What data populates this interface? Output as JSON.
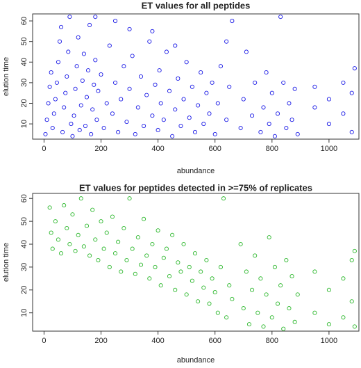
{
  "chart_data": [
    {
      "type": "scatter",
      "title": "ET values for all peptides",
      "x_label": "abundance",
      "y_label": "elution time",
      "color": "#1a1ae6",
      "x": [
        5,
        10,
        15,
        20,
        25,
        30,
        35,
        40,
        45,
        50,
        55,
        60,
        65,
        70,
        75,
        80,
        85,
        90,
        95,
        100,
        105,
        110,
        115,
        120,
        125,
        130,
        135,
        140,
        145,
        150,
        155,
        160,
        165,
        170,
        175,
        180,
        185,
        190,
        200,
        210,
        220,
        230,
        240,
        250,
        260,
        270,
        280,
        290,
        300,
        310,
        320,
        330,
        340,
        350,
        360,
        370,
        380,
        390,
        400,
        405,
        410,
        420,
        430,
        440,
        450,
        460,
        470,
        480,
        490,
        500,
        510,
        520,
        530,
        540,
        550,
        560,
        570,
        580,
        590,
        600,
        610,
        620,
        640,
        650,
        660,
        690,
        700,
        710,
        730,
        740,
        760,
        770,
        780,
        790,
        800,
        810,
        820,
        830,
        840,
        850,
        860,
        870,
        880,
        890,
        950,
        950,
        1000,
        1000,
        1050,
        1050,
        1080,
        1080,
        1090,
        460,
        380,
        300,
        250,
        180,
        640
      ],
      "values": [
        5,
        12,
        20,
        28,
        35,
        8,
        15,
        22,
        30,
        40,
        50,
        57,
        6,
        18,
        25,
        33,
        45,
        62,
        10,
        4,
        14,
        27,
        38,
        52,
        7,
        19,
        31,
        44,
        9,
        23,
        36,
        58,
        5,
        17,
        29,
        41,
        12,
        26,
        34,
        8,
        20,
        48,
        15,
        30,
        6,
        22,
        38,
        11,
        27,
        43,
        5,
        18,
        33,
        9,
        24,
        50,
        14,
        29,
        7,
        36,
        20,
        12,
        45,
        26,
        4,
        17,
        32,
        9,
        22,
        40,
        13,
        28,
        6,
        19,
        35,
        10,
        25,
        15,
        30,
        5,
        20,
        38,
        12,
        28,
        60,
        8,
        22,
        45,
        14,
        30,
        6,
        18,
        35,
        10,
        25,
        4,
        15,
        62,
        30,
        8,
        20,
        12,
        27,
        5,
        18,
        28,
        10,
        22,
        15,
        30,
        6,
        25,
        37,
        48,
        55,
        56,
        60,
        62,
        50
      ],
      "xlim": [
        -40,
        1105
      ],
      "ylim": [
        2.6,
        63.4
      ],
      "xticks": [
        0,
        200,
        400,
        600,
        800,
        1000
      ],
      "yticks": [
        10,
        20,
        30,
        40,
        50,
        60
      ]
    },
    {
      "type": "scatter",
      "title": "ET values for peptides detected in >=75% of replicates",
      "x_label": "abundance",
      "y_label": "elution time",
      "color": "#2db82d",
      "x": [
        20,
        25,
        30,
        40,
        50,
        60,
        70,
        80,
        90,
        100,
        110,
        120,
        130,
        140,
        150,
        160,
        170,
        180,
        190,
        200,
        210,
        220,
        230,
        240,
        250,
        260,
        270,
        280,
        290,
        300,
        310,
        320,
        330,
        340,
        350,
        360,
        370,
        380,
        390,
        400,
        410,
        420,
        430,
        440,
        450,
        460,
        470,
        480,
        490,
        500,
        510,
        520,
        530,
        540,
        550,
        560,
        570,
        580,
        590,
        600,
        610,
        620,
        630,
        640,
        650,
        660,
        690,
        700,
        710,
        720,
        730,
        740,
        750,
        760,
        770,
        780,
        790,
        800,
        810,
        820,
        830,
        840,
        850,
        860,
        870,
        880,
        890,
        950,
        950,
        1000,
        1000,
        1050,
        1050,
        1080,
        1080,
        1090,
        1090
      ],
      "values": [
        56,
        45,
        38,
        50,
        42,
        36,
        57,
        47,
        40,
        53,
        37,
        44,
        60,
        39,
        48,
        35,
        55,
        42,
        33,
        50,
        38,
        45,
        30,
        52,
        36,
        41,
        28,
        47,
        33,
        60,
        38,
        27,
        43,
        31,
        51,
        35,
        25,
        40,
        30,
        46,
        22,
        34,
        38,
        26,
        44,
        20,
        32,
        28,
        40,
        18,
        30,
        24,
        36,
        15,
        28,
        21,
        33,
        14,
        25,
        19,
        10,
        30,
        60,
        8,
        22,
        16,
        40,
        12,
        28,
        5,
        20,
        35,
        10,
        25,
        4,
        18,
        43,
        8,
        30,
        14,
        22,
        3,
        33,
        12,
        26,
        6,
        18,
        10,
        28,
        5,
        20,
        8,
        25,
        15,
        33,
        4,
        37
      ],
      "xlim": [
        -40,
        1105
      ],
      "ylim": [
        2,
        62.2
      ],
      "xticks": [
        0,
        200,
        400,
        600,
        800,
        1000
      ],
      "yticks": [
        10,
        20,
        30,
        40,
        50,
        60
      ]
    }
  ]
}
